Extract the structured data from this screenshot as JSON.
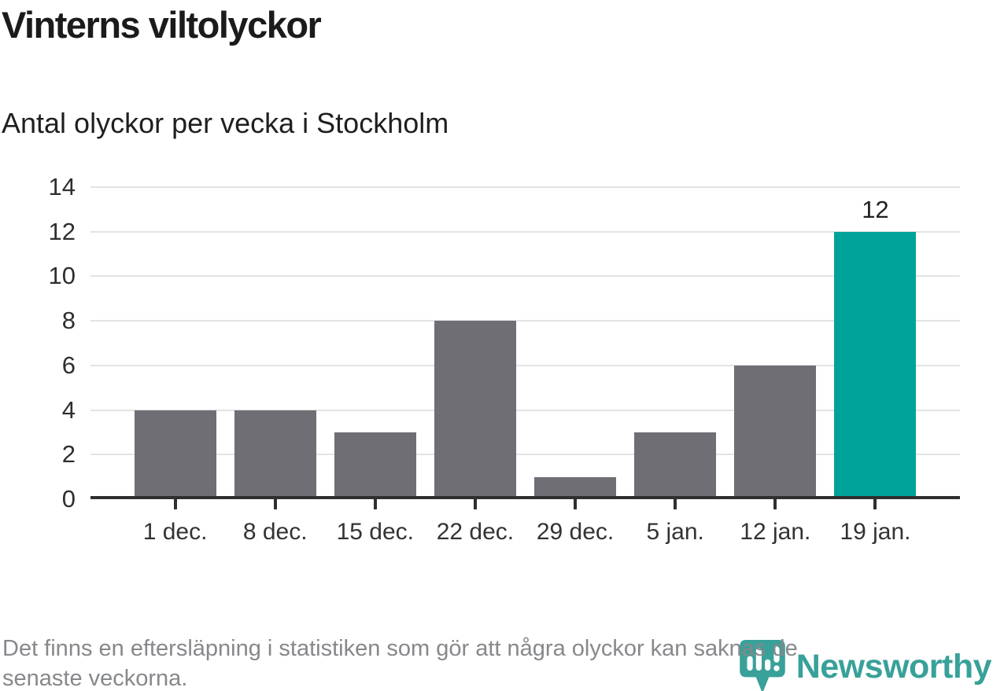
{
  "header": {
    "title": "Vinterns viltolyckor",
    "subtitle": "Antal olyckor per vecka i Stockholm"
  },
  "chart_data": {
    "type": "bar",
    "categories": [
      "1 dec.",
      "8 dec.",
      "15 dec.",
      "22 dec.",
      "29 dec.",
      "5 jan.",
      "12 jan.",
      "19 jan."
    ],
    "values": [
      4,
      4,
      3,
      8,
      1,
      3,
      6,
      12
    ],
    "title": "Vinterns viltolyckor",
    "subtitle": "Antal olyckor per vecka i Stockholm",
    "xlabel": "",
    "ylabel": "",
    "ylim": [
      0,
      14
    ],
    "yticks": [
      0,
      2,
      4,
      6,
      8,
      10,
      12,
      14
    ],
    "grid": true,
    "legend": "none",
    "bar_color": "#6e6e74",
    "highlight_index": 7,
    "highlight_color": "#00a399",
    "value_labels": {
      "7": "12"
    },
    "axis_color": "#2f2f2f",
    "grid_color": "#e3e3e3",
    "tick_label_color": "#333333"
  },
  "footnote": {
    "lines": [
      "Det finns en eftersläpning i statistiken som gör att några olyckor kan saknas de",
      "senaste veckorna."
    ]
  },
  "logo": {
    "name": "Newsworthy",
    "color": "#38a199",
    "icon": "newsworthy-bubble-chart-icon"
  }
}
